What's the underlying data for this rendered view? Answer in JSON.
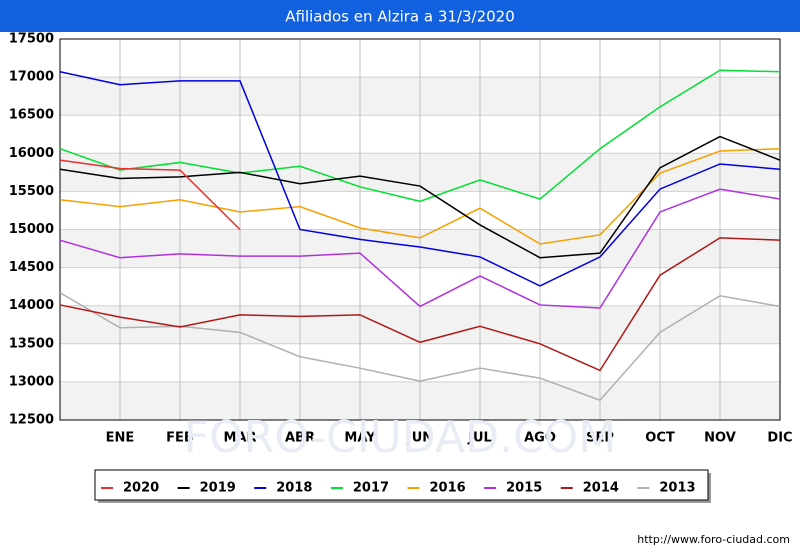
{
  "chart_data": {
    "type": "line",
    "title": "Afiliados en Alzira a 31/3/2020",
    "watermark": "FORO-CIUDAD.COM",
    "source": "http://www.foro-ciudad.com",
    "categories": [
      null,
      "ENE",
      "FEB",
      "MAR",
      "ABR",
      "MAY",
      "JUN",
      "JUL",
      "AGO",
      "SEP",
      "OCT",
      "NOV",
      "DIC"
    ],
    "ylim": [
      12500,
      17500
    ],
    "yticks": [
      12500,
      13000,
      13500,
      14000,
      14500,
      15000,
      15500,
      16000,
      16500,
      17000,
      17500
    ],
    "grid": true,
    "legend": "bottom",
    "series": [
      {
        "name": "2020",
        "color": "#e83030",
        "values": [
          15910,
          15800,
          15780,
          15000,
          null,
          null,
          null,
          null,
          null,
          null,
          null,
          null,
          null
        ]
      },
      {
        "name": "2019",
        "color": "#000000",
        "values": [
          15790,
          15670,
          15690,
          15750,
          15600,
          15700,
          15570,
          15060,
          14630,
          14690,
          15810,
          16220,
          15910
        ]
      },
      {
        "name": "2018",
        "color": "#0000e0",
        "values": [
          17070,
          16900,
          16950,
          16950,
          15000,
          14870,
          14770,
          14640,
          14260,
          14640,
          15530,
          15860,
          15790
        ]
      },
      {
        "name": "2017",
        "color": "#00e030",
        "values": [
          16060,
          15780,
          15880,
          15740,
          15830,
          15560,
          15370,
          15650,
          15400,
          16060,
          16610,
          17090,
          17070
        ]
      },
      {
        "name": "2016",
        "color": "#f5a000",
        "values": [
          15390,
          15300,
          15390,
          15230,
          15300,
          15020,
          14890,
          15280,
          14810,
          14930,
          15740,
          16030,
          16060
        ]
      },
      {
        "name": "2015",
        "color": "#b030e0",
        "values": [
          14860,
          14630,
          14680,
          14650,
          14650,
          14690,
          13990,
          14390,
          14010,
          13970,
          15230,
          15530,
          15400
        ]
      },
      {
        "name": "2014",
        "color": "#b01818",
        "values": [
          14010,
          13850,
          13720,
          13880,
          13860,
          13880,
          13520,
          13730,
          13500,
          13150,
          14400,
          14890,
          14860
        ]
      },
      {
        "name": "2013",
        "color": "#b0b0b0",
        "values": [
          14170,
          13710,
          13730,
          13650,
          13330,
          13180,
          13010,
          13180,
          13050,
          12760,
          13650,
          14130,
          13990
        ]
      }
    ]
  }
}
